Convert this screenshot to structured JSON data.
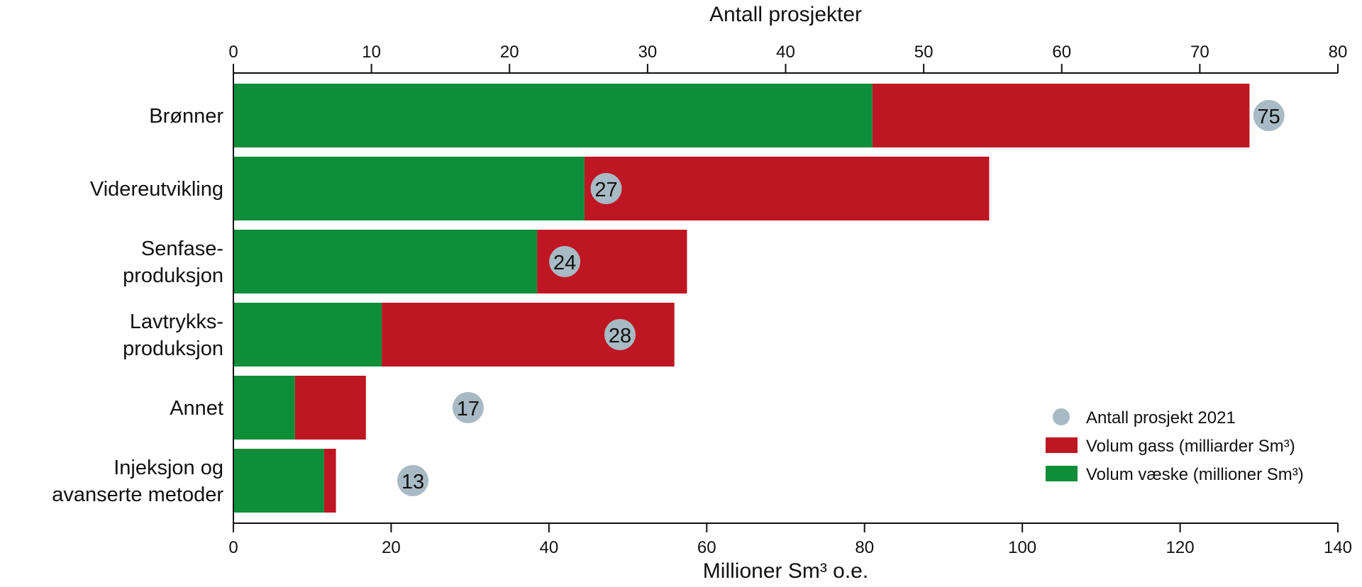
{
  "chart_data": {
    "type": "bar",
    "stacked": true,
    "orientation": "horizontal",
    "categories": [
      [
        "Brønner"
      ],
      [
        "Videreutvikling"
      ],
      [
        "Senfase-",
        "produksjon"
      ],
      [
        "Lavtrykks-",
        "produksjon"
      ],
      [
        "Annet"
      ],
      [
        "Injeksjon og",
        "avanserte metoder"
      ]
    ],
    "series": [
      {
        "name": "Volum væske (millioner Sm³)",
        "color": "#0f8e3a",
        "values": [
          81,
          44.5,
          38.5,
          18.8,
          7.8,
          11.5
        ]
      },
      {
        "name": "Volum gass (milliarder Sm³)",
        "color": "#be1622",
        "values": [
          47.8,
          51.3,
          19,
          37.1,
          9,
          1.5
        ]
      }
    ],
    "dots": {
      "name": "Antall prosjekt 2021",
      "color": "#a8bac4",
      "values": [
        75,
        27,
        24,
        28,
        17,
        13
      ]
    },
    "x_bottom": {
      "label": "Millioner Sm³ o.e.",
      "range": [
        0,
        140
      ],
      "ticks": [
        0,
        20,
        40,
        60,
        80,
        100,
        120,
        140
      ]
    },
    "x_top": {
      "label": "Antall prosjekter",
      "range": [
        0,
        80
      ],
      "ticks": [
        0,
        10,
        20,
        30,
        40,
        50,
        60,
        70,
        80
      ]
    },
    "legend": {
      "position": "bottom-right",
      "entries": [
        {
          "label": "Antall prosjekt 2021",
          "kind": "dot",
          "color": "#a8bac4"
        },
        {
          "label": "Volum gass (milliarder Sm³)",
          "kind": "box",
          "color": "#be1622"
        },
        {
          "label": "Volum væske (millioner Sm³)",
          "kind": "box",
          "color": "#0f8e3a"
        }
      ]
    },
    "grid": false
  }
}
